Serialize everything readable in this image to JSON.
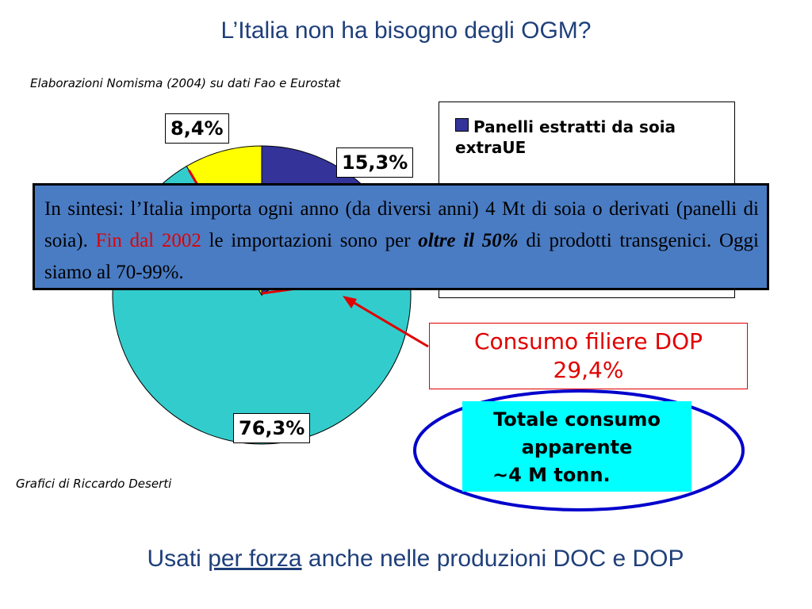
{
  "title": "L’Italia non ha bisogno degli OGM?",
  "source": "Elaborazioni Nomisma (2004) su dati Fao e Eurostat",
  "credit": "Grafici di Riccardo Deserti",
  "chart_data": {
    "type": "pie",
    "slices": [
      {
        "label": "Panelli estratti da soia extraUE",
        "value": 15.3,
        "display": "15,3%",
        "color": "#333399"
      },
      {
        "label": "",
        "value": 76.3,
        "display": "76,3%",
        "color": "#33cccc"
      },
      {
        "label": "",
        "value": 8.4,
        "display": "8,4%",
        "color": "#ffff00"
      }
    ]
  },
  "legend": {
    "items": [
      {
        "label": "Panelli estratti da soia extraUE",
        "color": "#333399"
      }
    ]
  },
  "summary": {
    "part1": "In sintesi: l’Italia importa ogni anno (da diversi anni) 4 Mt di soia o derivati (panelli di soia). ",
    "highlight": "Fin dal 2002",
    "part2": " le importazioni sono per ",
    "bold": "oltre il 50%",
    "part3": " di prodotti transgenici. Oggi siamo al 70-99%."
  },
  "dop_callout": {
    "line1": "Consumo filiere DOP",
    "line2": "29,4%"
  },
  "total_box": {
    "line1": "Totale consumo",
    "line2": "apparente",
    "line3": "~4 M tonn."
  },
  "bottom": {
    "prefix": "Usati ",
    "underlined": "per forza",
    "suffix": " anche nelle produzioni DOC e DOP"
  },
  "colors": {
    "title": "#1f3f7a",
    "summary_bg": "#4a7cc4",
    "accent_red": "#e00000",
    "total_bg": "#00ffff",
    "ellipse": "#0000cc"
  }
}
